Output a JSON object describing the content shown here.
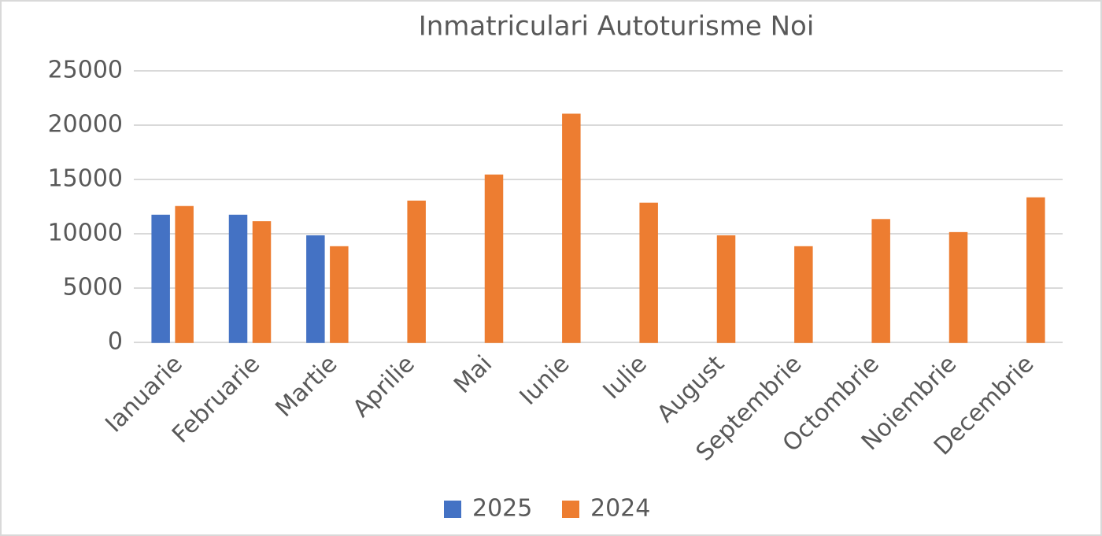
{
  "chart_data": {
    "type": "bar",
    "title": "Inmatriculari Autoturisme Noi",
    "categories": [
      "Ianuarie",
      "Februarie",
      "Martie",
      "Aprilie",
      "Mai",
      "Iunie",
      "Iulie",
      "August",
      "Septembrie",
      "Octombrie",
      "Noiembrie",
      "Decembrie"
    ],
    "series": [
      {
        "name": "2025",
        "color": "#4472c4",
        "values": [
          11700,
          11700,
          9800,
          0,
          0,
          0,
          0,
          0,
          0,
          0,
          0,
          0
        ]
      },
      {
        "name": "2024",
        "color": "#ed7d31",
        "values": [
          12500,
          11100,
          8800,
          13000,
          15400,
          21000,
          12800,
          9800,
          8800,
          11300,
          10100,
          13300
        ]
      }
    ],
    "ylim": [
      0,
      25000
    ],
    "yticks": [
      0,
      5000,
      10000,
      15000,
      20000,
      25000
    ],
    "grid": true,
    "legend": "bottom"
  }
}
